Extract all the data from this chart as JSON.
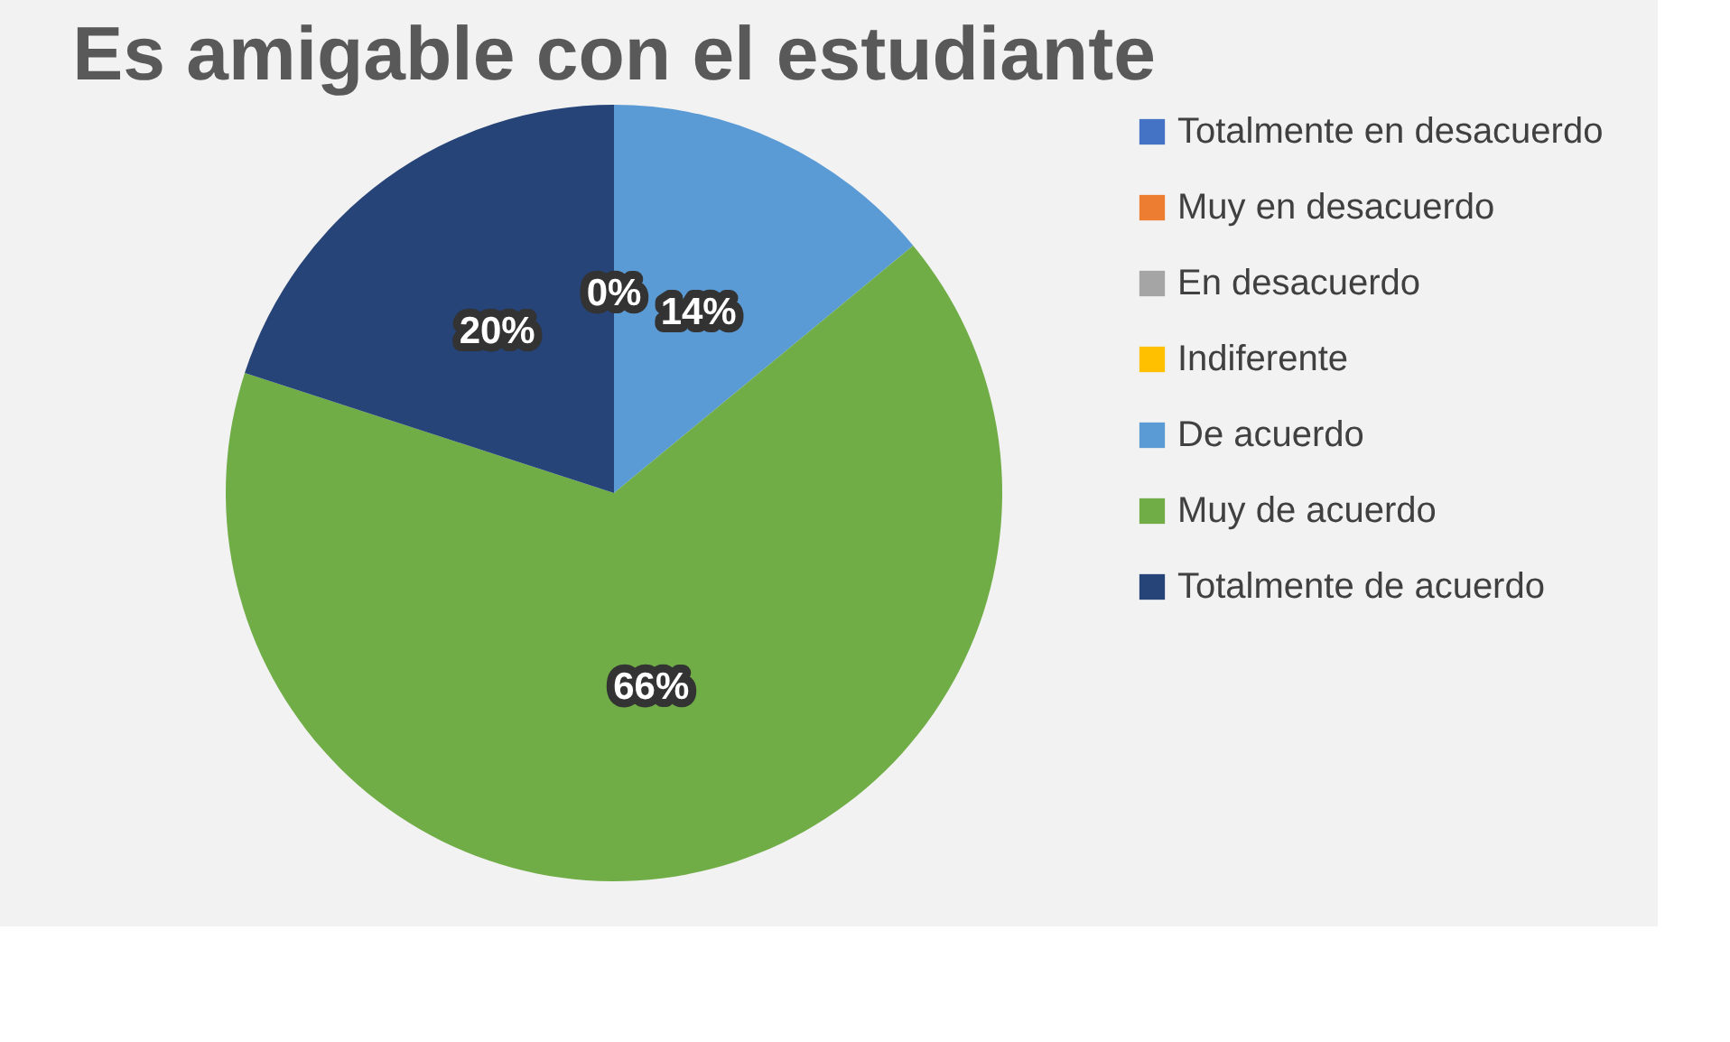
{
  "chart_data": {
    "type": "pie",
    "title": "Es amigable con el estudiante",
    "categories": [
      "Totalmente en desacuerdo",
      "Muy en desacuerdo",
      "En desacuerdo",
      "Indiferente",
      "De acuerdo",
      "Muy de acuerdo",
      "Totalmente de acuerdo"
    ],
    "values": [
      0,
      0,
      0,
      0,
      14,
      66,
      20
    ],
    "colors": [
      "#4472c4",
      "#ed7d31",
      "#a5a5a5",
      "#ffc000",
      "#5b9bd5",
      "#70ad47",
      "#264478"
    ],
    "value_labels": [
      "0%",
      null,
      null,
      null,
      "14%",
      "66%",
      "20%"
    ],
    "legend": "right"
  }
}
